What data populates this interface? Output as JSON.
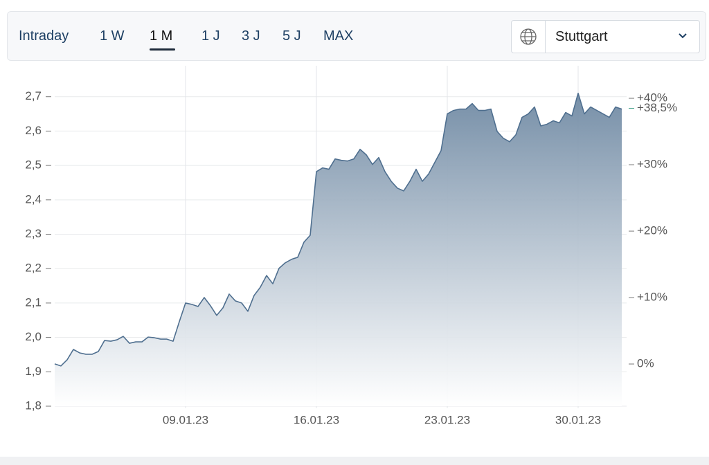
{
  "toolbar": {
    "tabs": [
      "Intraday",
      "1 W",
      "1 M",
      "1 J",
      "3 J",
      "5 J",
      "MAX"
    ],
    "active_tab": 2,
    "exchange": "Stuttgart"
  },
  "chart_data": {
    "type": "area",
    "categories": [
      null,
      null,
      null,
      null,
      null,
      null,
      null,
      null,
      null,
      null,
      null,
      null,
      null,
      null,
      null,
      null,
      null,
      null,
      null,
      null,
      null,
      "09.01.23",
      null,
      null,
      null,
      null,
      null,
      null,
      null,
      null,
      null,
      null,
      null,
      null,
      null,
      null,
      null,
      null,
      null,
      null,
      null,
      null,
      "16.01.23",
      null,
      null,
      null,
      null,
      null,
      null,
      null,
      null,
      null,
      null,
      null,
      null,
      null,
      null,
      null,
      null,
      null,
      null,
      null,
      null,
      "23.01.23",
      null,
      null,
      null,
      null,
      null,
      null,
      null,
      null,
      null,
      null,
      null,
      null,
      null,
      null,
      null,
      null,
      null,
      null,
      null,
      null,
      "30.01.23",
      null,
      null,
      null,
      null,
      null,
      null,
      null
    ],
    "values": [
      1.923,
      1.917,
      1.935,
      1.965,
      1.955,
      1.951,
      1.951,
      1.959,
      1.991,
      1.989,
      1.993,
      2.003,
      1.983,
      1.987,
      1.987,
      2.001,
      1.999,
      1.995,
      1.995,
      1.989,
      2.046,
      2.1,
      2.096,
      2.09,
      2.116,
      2.092,
      2.064,
      2.086,
      2.126,
      2.106,
      2.1,
      2.076,
      2.122,
      2.146,
      2.18,
      2.156,
      2.201,
      2.217,
      2.227,
      2.233,
      2.277,
      2.297,
      2.482,
      2.493,
      2.489,
      2.519,
      2.515,
      2.513,
      2.519,
      2.547,
      2.531,
      2.503,
      2.523,
      2.482,
      2.454,
      2.434,
      2.426,
      2.454,
      2.489,
      2.454,
      2.475,
      2.509,
      2.543,
      2.65,
      2.66,
      2.664,
      2.664,
      2.68,
      2.66,
      2.66,
      2.664,
      2.599,
      2.579,
      2.569,
      2.589,
      2.64,
      2.65,
      2.67,
      2.615,
      2.62,
      2.63,
      2.624,
      2.654,
      2.644,
      2.71,
      2.65,
      2.67,
      2.66,
      2.65,
      2.64,
      2.67,
      2.664
    ],
    "color": "#4f6f8f",
    "ylim": [
      1.8,
      2.79
    ],
    "yticks": [
      {
        "value": 1.8,
        "label": "1,8"
      },
      {
        "value": 1.9,
        "label": "1,9"
      },
      {
        "value": 2.0,
        "label": "2,0"
      },
      {
        "value": 2.1,
        "label": "2,1"
      },
      {
        "value": 2.2,
        "label": "2,2"
      },
      {
        "value": 2.3,
        "label": "2,3"
      },
      {
        "value": 2.4,
        "label": "2,4"
      },
      {
        "value": 2.5,
        "label": "2,5"
      },
      {
        "value": 2.6,
        "label": "2,6"
      },
      {
        "value": 2.7,
        "label": "2,7"
      }
    ],
    "y2lim": [
      -6.35,
      44.9
    ],
    "y2ticks": [
      {
        "value": 0,
        "label": "0%"
      },
      {
        "value": 10,
        "label": "+10%"
      },
      {
        "value": 20,
        "label": "+20%"
      },
      {
        "value": 30,
        "label": "+30%"
      },
      {
        "value": 40,
        "label": "+40%"
      }
    ],
    "y2_marker": {
      "value": 38.5,
      "label": "+38,5%",
      "color": "#3a9c82"
    },
    "grid": true
  }
}
